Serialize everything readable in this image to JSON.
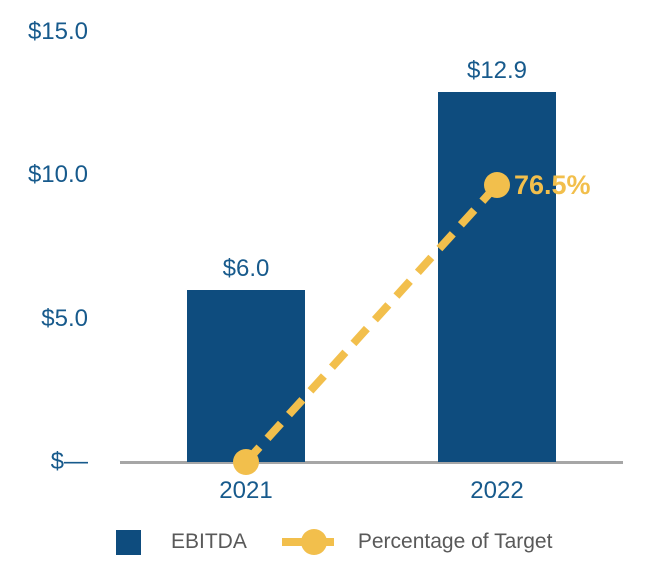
{
  "chart_data": {
    "type": "bar",
    "subtype": "bar-and-line-combo",
    "title": "",
    "xlabel": "",
    "ylabel": "",
    "categories": [
      "2021",
      "2022"
    ],
    "series": [
      {
        "name": "EBITDA",
        "type": "bar",
        "axis": "primary",
        "values": [
          6.0,
          12.9
        ],
        "labels": [
          "$6.0",
          "$12.9"
        ],
        "color": "#0E4C7E"
      },
      {
        "name": "Percentage of Target",
        "type": "line",
        "axis": "secondary",
        "style": "dashed",
        "marker": "circle",
        "values": [
          0,
          76.5
        ],
        "labels": [
          "",
          "76.5%"
        ],
        "color": "#F2BF4C"
      }
    ],
    "ylim": [
      0,
      15
    ],
    "yticks": [
      0,
      5,
      10,
      15
    ],
    "ytick_labels": [
      "$—",
      "$5.0",
      "$10.0",
      "$15.0"
    ],
    "secondary_ylim": [
      0,
      119
    ],
    "grid": false,
    "legend_position": "bottom"
  },
  "colors": {
    "bar_navy": "#0E4C7E",
    "line_gold": "#F2BF4C",
    "axis_label_blue": "#175A8C",
    "legend_text_gray": "#595959",
    "axis_line_gray": "#A6A6A6",
    "background": "#FFFFFF"
  }
}
